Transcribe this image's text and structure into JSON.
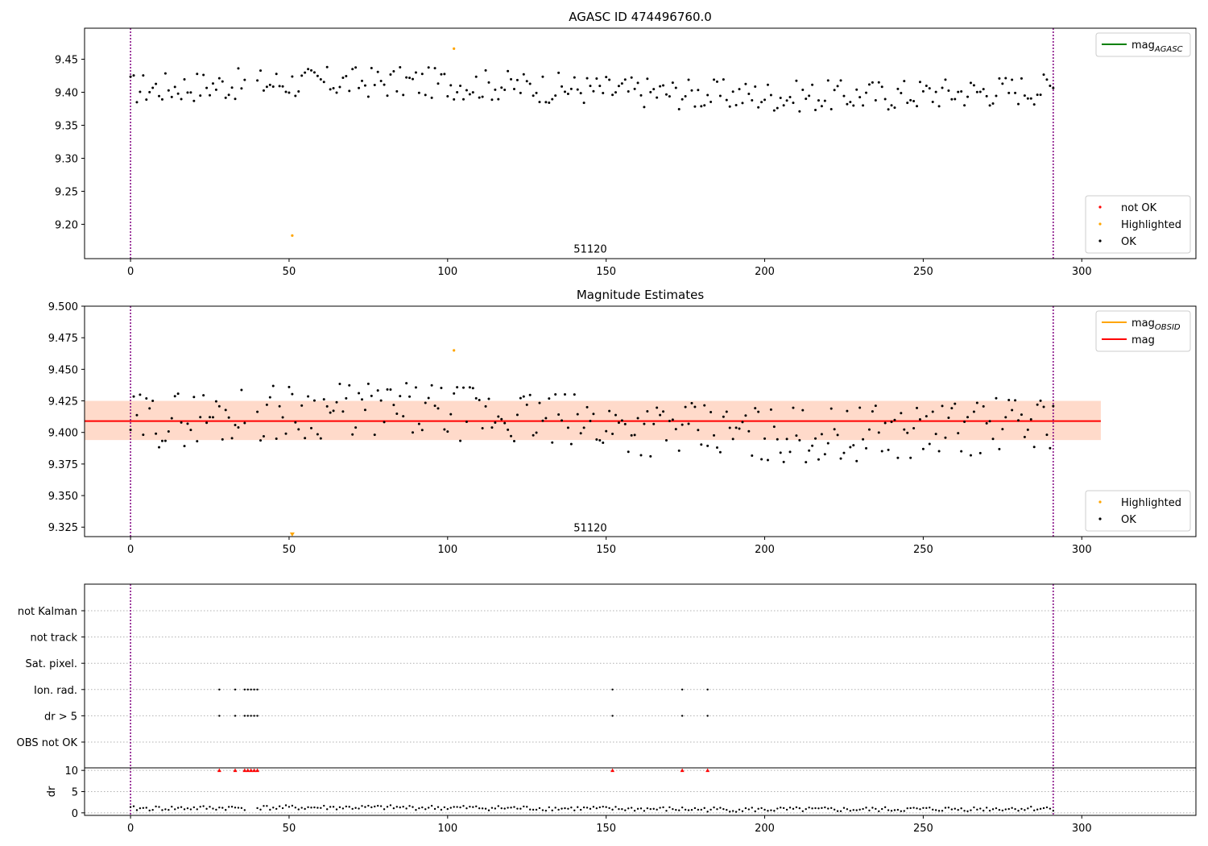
{
  "chart_data": [
    {
      "type": "scatter",
      "title": "AGASC ID 474496760.0",
      "xlim": [
        -14.5,
        336
      ],
      "ylim": [
        9.148,
        9.497
      ],
      "x_ticks": [
        0,
        50,
        100,
        150,
        200,
        250,
        300
      ],
      "y_ticks": [
        9.2,
        9.25,
        9.3,
        9.35,
        9.4,
        9.45
      ],
      "y_tick_labels": [
        "9.20",
        "9.25",
        "9.30",
        "9.35",
        "9.40",
        "9.45"
      ],
      "vlines": [
        0,
        291
      ],
      "annotation": {
        "text": "51120",
        "x": 145,
        "y": 9.157
      },
      "series": [
        {
          "name": "not OK",
          "color": "#ff0000",
          "points": []
        },
        {
          "name": "Highlighted",
          "color": "#ffa500",
          "points": [
            [
              51,
              9.183
            ],
            [
              102,
              9.466
            ]
          ]
        },
        {
          "name": "OK",
          "color": "#000000",
          "pattern": {
            "base": 9.405,
            "amp": 0.03,
            "n": 291,
            "gap": [
              36,
              40
            ]
          }
        }
      ],
      "legends": [
        {
          "position": "upper right",
          "entries": [
            {
              "label": "mag",
              "sub": "AGASC",
              "color": "#008000",
              "kind": "line"
            }
          ]
        },
        {
          "position": "lower right",
          "entries": [
            {
              "label": "not OK",
              "color": "#ff0000",
              "kind": "point"
            },
            {
              "label": "Highlighted",
              "color": "#ffa500",
              "kind": "point"
            },
            {
              "label": "OK",
              "color": "#000000",
              "kind": "point"
            }
          ]
        }
      ]
    },
    {
      "type": "scatter",
      "title": "Magnitude Estimates",
      "xlim": [
        -14.5,
        336
      ],
      "ylim": [
        9.3175,
        9.5
      ],
      "x_ticks": [
        0,
        50,
        100,
        150,
        200,
        250,
        300
      ],
      "y_ticks": [
        9.325,
        9.35,
        9.375,
        9.4,
        9.425,
        9.45,
        9.475,
        9.5
      ],
      "y_tick_labels": [
        "9.325",
        "9.350",
        "9.375",
        "9.400",
        "9.425",
        "9.450",
        "9.475",
        "9.500"
      ],
      "vlines": [
        0,
        291
      ],
      "annotation": {
        "text": "51120",
        "x": 145,
        "y": 9.3215
      },
      "mag": 9.409,
      "mag_band": [
        9.394,
        9.425
      ],
      "band_x": [
        -14.5,
        306
      ],
      "series": [
        {
          "name": "Highlighted",
          "color": "#ffa500",
          "points": [
            [
              102,
              9.465
            ]
          ],
          "offscale_marker": {
            "x": 51,
            "y": 9.3195
          }
        },
        {
          "name": "OK",
          "color": "#000000",
          "pattern": {
            "base": 9.408,
            "amp": 0.028,
            "n": 291,
            "gap": [
              36,
              40
            ]
          }
        }
      ],
      "legends": [
        {
          "position": "upper right",
          "entries": [
            {
              "label": "mag",
              "sub": "OBSID",
              "color": "#ffa500",
              "kind": "line"
            },
            {
              "label": "mag",
              "sub": "",
              "color": "#ff0000",
              "kind": "line"
            }
          ]
        },
        {
          "position": "lower right",
          "entries": [
            {
              "label": "Highlighted",
              "color": "#ffa500",
              "kind": "point"
            },
            {
              "label": "OK",
              "color": "#000000",
              "kind": "point"
            }
          ]
        }
      ]
    },
    {
      "type": "scatter",
      "title": "",
      "xlim": [
        -14.5,
        336
      ],
      "y_categories": [
        "not Kalman",
        "not track",
        "Sat. pixel.",
        "Ion. rad.",
        "dr > 5",
        "OBS not OK"
      ],
      "vlines": [
        0,
        291
      ],
      "flag_points": {
        "Ion. rad.": [
          28,
          33,
          36,
          37,
          38,
          39,
          40,
          152,
          174,
          182
        ],
        "dr > 5": [
          28,
          33,
          36,
          37,
          38,
          39,
          40,
          152,
          174,
          182
        ]
      }
    },
    {
      "type": "scatter",
      "title": "",
      "ylabel": "dr",
      "xlim": [
        -14.5,
        336
      ],
      "ylim": [
        -0.6,
        10.6
      ],
      "x_ticks": [
        0,
        50,
        100,
        150,
        200,
        250,
        300
      ],
      "y_ticks": [
        0,
        5,
        10
      ],
      "y_tick_labels": [
        "0",
        "5",
        "10"
      ],
      "vlines": [
        0,
        291
      ],
      "red_markers_x": [
        28,
        33,
        36,
        37,
        38,
        39,
        40,
        152,
        174,
        182
      ],
      "red_marker_y": 10,
      "series": [
        {
          "name": "dr",
          "color": "#000000",
          "pattern": {
            "base": 1.0,
            "amp": 0.7,
            "n": 291,
            "gap": [
              36,
              40
            ]
          }
        }
      ]
    }
  ],
  "colors": {
    "ok": "#000000",
    "highlighted": "#ffa500",
    "not_ok": "#ff0000",
    "vline": "#800080",
    "band_fill": "#ffc0cb",
    "band_fill_inner": "#ffd3b0",
    "mag_line": "#ff0000",
    "agasc_line": "#008000",
    "grid_dotted": "#b0b0b0"
  }
}
